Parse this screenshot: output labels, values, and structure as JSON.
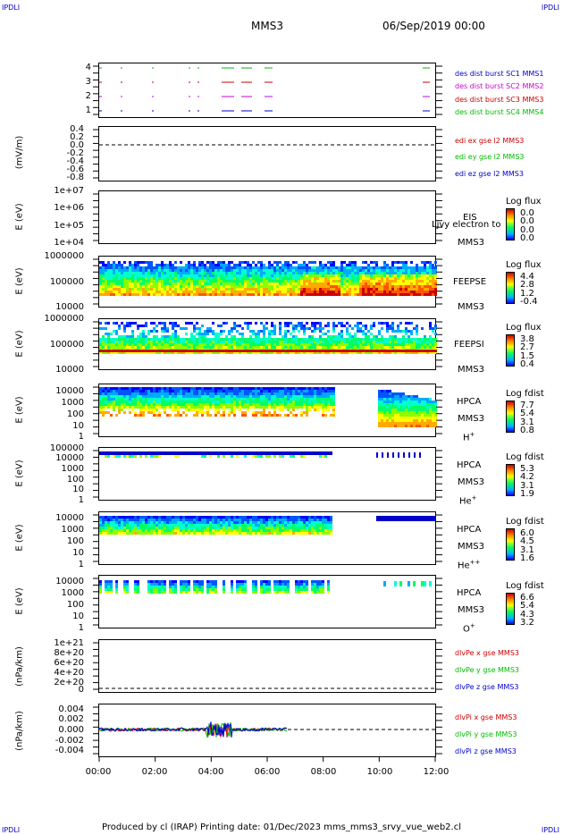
{
  "header": {
    "corner_tl": "IPDLI",
    "corner_tr": "IPDLI",
    "corner_bl": "IPDLI",
    "corner_br": "IPDLI",
    "spacecraft": "MMS3",
    "datetime": "06/Sep/2019 00:00"
  },
  "footer": {
    "text": "Produced by cl (IRAP)   Printing date: 01/Dec/2023   mms_mms3_srvy_vue_web2.cl"
  },
  "colors": {
    "blue": "#0000cc",
    "magenta": "#cc00cc",
    "red": "#cc0000",
    "green": "#00bb00"
  },
  "chart_data": [
    {
      "type": "timeline",
      "id": "burst",
      "yticks": [
        "4",
        "3",
        "2",
        "1"
      ],
      "legend": [
        "des dist burst SC1 MMS1",
        "des dist burst SC2 MMS2",
        "des dist burst SC3 MMS3",
        "des dist burst SC4 MMS4"
      ],
      "legend_colors": [
        "#0000cc",
        "#cc00cc",
        "#cc0000",
        "#00bb00"
      ]
    },
    {
      "type": "line",
      "id": "edi",
      "ylabel": "(mV/m)",
      "yticks": [
        "0.4",
        "0.2",
        "0.0",
        "-0.2",
        "-0.4",
        "-0.6",
        "-0.8"
      ],
      "legend": [
        "edi ex gse l2 MMS3",
        "edi ey gse l2 MMS3",
        "edi ez gse l2 MMS3"
      ],
      "legend_colors": [
        "#cc0000",
        "#00bb00",
        "#0000cc"
      ]
    },
    {
      "type": "heatmap",
      "id": "eis",
      "ylabel": "E (eV)",
      "yticks": [
        "1e+07",
        "1e+06",
        "1e+05",
        "1e+04"
      ],
      "name": "EIS",
      "overlay": "Ljvy electron to",
      "sub": "MMS3",
      "cbar_title": "Log flux",
      "cbar_values": [
        "0.0",
        "0.0",
        "0.0",
        "0.0"
      ]
    },
    {
      "type": "heatmap",
      "id": "feepse",
      "ylabel": "E (eV)",
      "yticks": [
        "1000000",
        "100000",
        "10000"
      ],
      "name": "FEEPSE",
      "sub": "MMS3",
      "cbar_title": "Log flux",
      "cbar_values": [
        "4.4",
        "2.8",
        "1.2",
        "-0.4"
      ]
    },
    {
      "type": "heatmap",
      "id": "feepsi",
      "ylabel": "E (eV)",
      "yticks": [
        "1000000",
        "100000",
        "10000"
      ],
      "name": "FEEPSI",
      "sub": "MMS3",
      "cbar_title": "Log flux",
      "cbar_values": [
        "3.8",
        "2.7",
        "1.5",
        "0.4"
      ]
    },
    {
      "type": "heatmap",
      "id": "hpca_h",
      "ylabel": "E (eV)",
      "yticks": [
        "10000",
        "1000",
        "100",
        "10",
        "1"
      ],
      "name": "HPCA",
      "sub": "MMS3",
      "species": "H",
      "charge": "+",
      "cbar_title": "Log fdist",
      "cbar_values": [
        "7.7",
        "5.4",
        "3.1",
        "0.8"
      ]
    },
    {
      "type": "heatmap",
      "id": "hpca_he",
      "ylabel": "E (eV)",
      "yticks": [
        "100000",
        "10000",
        "1000",
        "100",
        "10",
        "1"
      ],
      "name": "HPCA",
      "sub": "MMS3",
      "species": "He",
      "charge": "+",
      "cbar_title": "Log fdist",
      "cbar_values": [
        "5.3",
        "4.2",
        "3.1",
        "1.9"
      ]
    },
    {
      "type": "heatmap",
      "id": "hpca_he2",
      "ylabel": "E (eV)",
      "yticks": [
        "10000",
        "1000",
        "100",
        "10",
        "1"
      ],
      "name": "HPCA",
      "sub": "MMS3",
      "species": "He",
      "charge": "++",
      "cbar_title": "Log fdist",
      "cbar_values": [
        "6.0",
        "4.5",
        "3.1",
        "1.6"
      ]
    },
    {
      "type": "heatmap",
      "id": "hpca_o",
      "ylabel": "E (eV)",
      "yticks": [
        "10000",
        "1000",
        "100",
        "10",
        "1"
      ],
      "name": "HPCA",
      "sub": "MMS3",
      "species": "O",
      "charge": "+",
      "cbar_title": "Log fdist",
      "cbar_values": [
        "6.6",
        "5.4",
        "4.3",
        "3.2"
      ]
    },
    {
      "type": "line",
      "id": "dlvpe",
      "ylabel": "(nPa/km)",
      "yticks": [
        "1e+21",
        "8e+20",
        "6e+20",
        "4e+20",
        "2e+20",
        "0"
      ],
      "legend": [
        "dlvPe x gse MMS3",
        "dlvPe y gse MMS3",
        "dlvPe z gse MMS3"
      ],
      "legend_colors": [
        "#cc0000",
        "#00bb00",
        "#0000cc"
      ]
    },
    {
      "type": "line",
      "id": "dlvpi",
      "ylabel": "(nPa/km)",
      "yticks": [
        "0.004",
        "0.002",
        "0.000",
        "-0.002",
        "-0.004"
      ],
      "legend": [
        "dlvPi x gse MMS3",
        "dlvPi y gse MMS3",
        "dlvPi z gse MMS3"
      ],
      "legend_colors": [
        "#cc0000",
        "#00bb00",
        "#0000cc"
      ]
    }
  ],
  "xaxis": {
    "ticks": [
      "00:00",
      "02:00",
      "04:00",
      "06:00",
      "08:00",
      "10:00",
      "12:00"
    ]
  }
}
